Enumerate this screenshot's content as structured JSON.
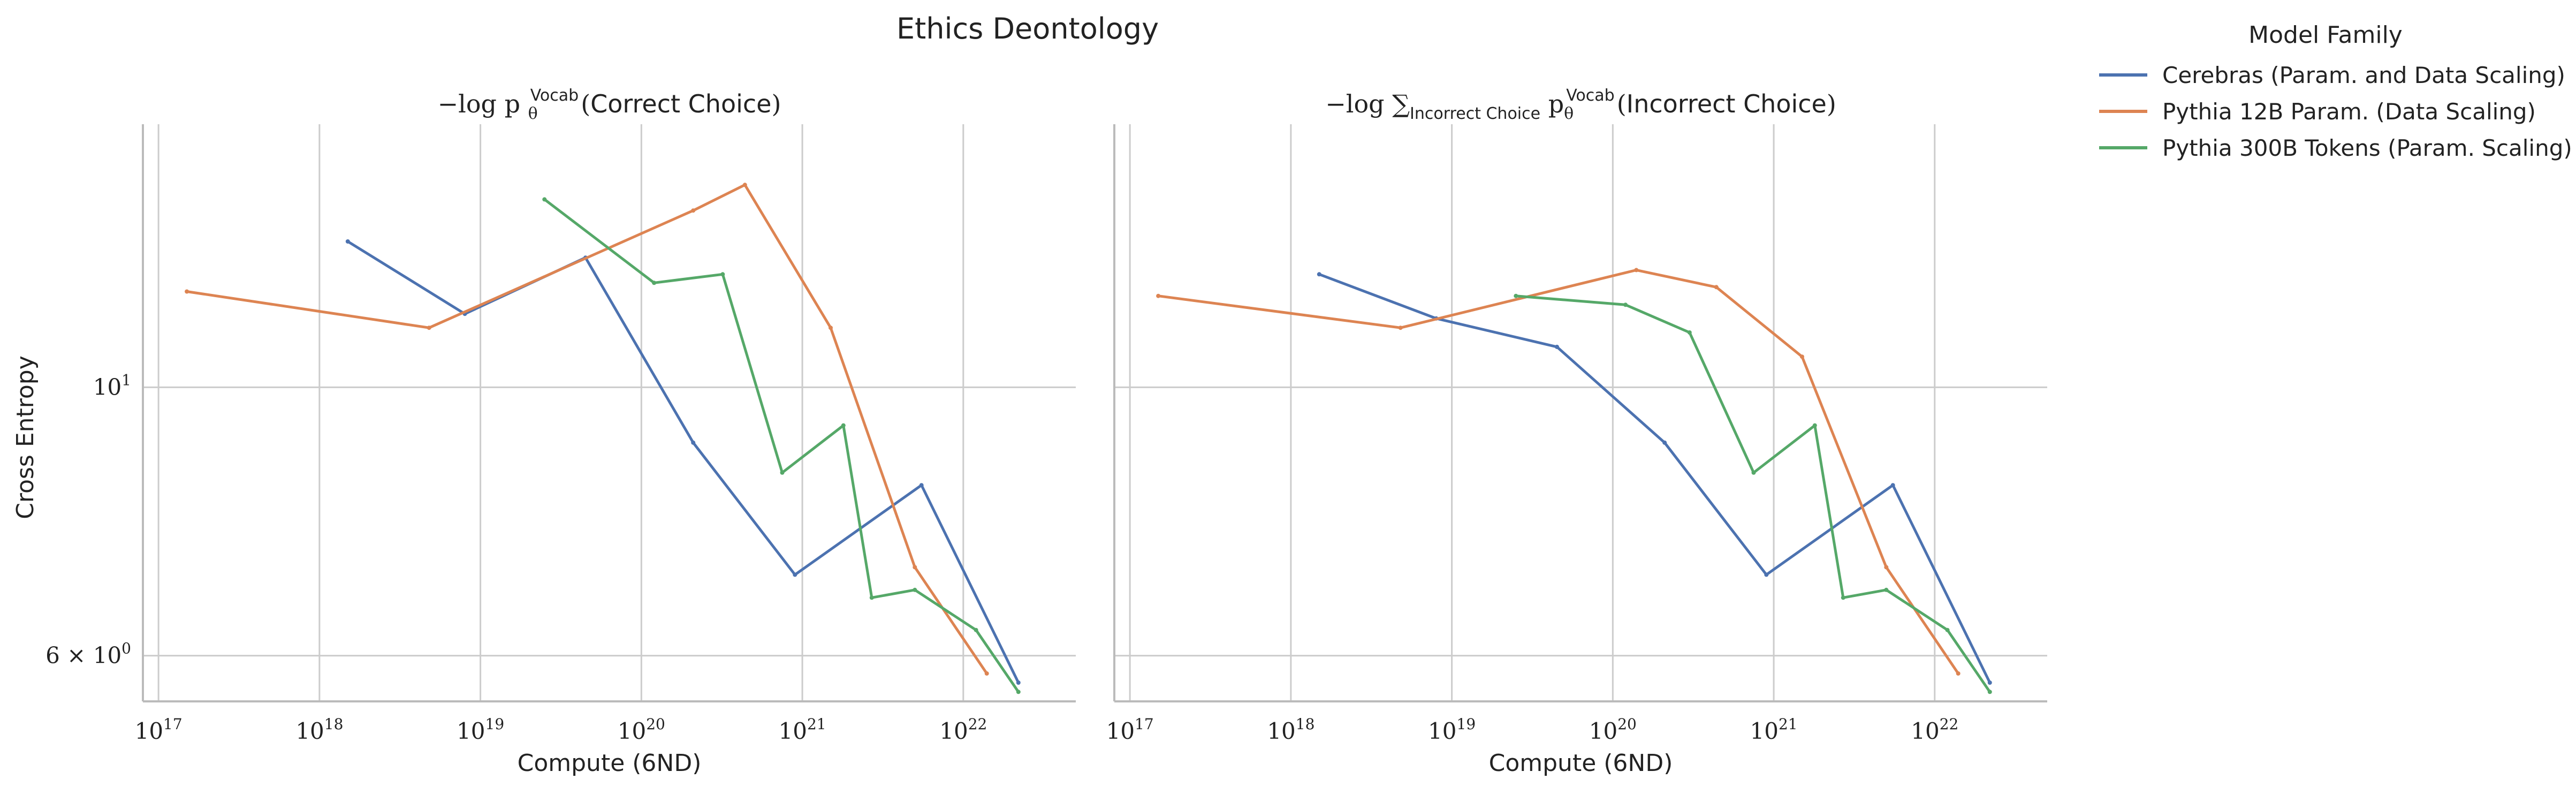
{
  "chart_data": {
    "type": "line",
    "title": "Ethics Deontology",
    "ylabel": "Cross Entropy",
    "x_scale": "log",
    "y_scale": "log",
    "xlim": [
      8e+16,
      5e+22
    ],
    "ylim": [
      5.5,
      16.5
    ],
    "x_ticks": [
      {
        "value": 1e+17,
        "base": "10",
        "exp": "17"
      },
      {
        "value": 1e+18,
        "base": "10",
        "exp": "18"
      },
      {
        "value": 1e+19,
        "base": "10",
        "exp": "19"
      },
      {
        "value": 1e+20,
        "base": "10",
        "exp": "20"
      },
      {
        "value": 1e+21,
        "base": "10",
        "exp": "21"
      },
      {
        "value": 1e+22,
        "base": "10",
        "exp": "22"
      }
    ],
    "y_ticks": [
      {
        "value": 10,
        "base": "10",
        "exp": "1",
        "prefix": ""
      },
      {
        "value": 6,
        "base": "10",
        "exp": "0",
        "prefix": "6 × "
      }
    ],
    "grid": true,
    "legend": {
      "title": "Model Family",
      "placement": "outside-right",
      "entries": [
        {
          "label": "Cerebras (Param. and Data Scaling)",
          "color": "#4c72b0"
        },
        {
          "label": "Pythia 12B Param. (Data Scaling)",
          "color": "#dd8452"
        },
        {
          "label": "Pythia 300B Tokens (Param. Scaling)",
          "color": "#55a868"
        }
      ]
    },
    "panels": [
      {
        "title_parts": [
          "−log p",
          "θ",
          "Vocab",
          "(",
          "Correct Choice",
          ")"
        ],
        "xlabel": "Compute (6ND)",
        "series": [
          {
            "name": "Cerebras (Param. and Data Scaling)",
            "color": "#4c72b0",
            "x": [
              1.5e+18,
              8e+18,
              4.5e+19,
              2.1e+20,
              9e+20,
              5.5e+21,
              2.2e+22
            ],
            "y": [
              13.2,
              11.5,
              12.8,
              9.0,
              7.0,
              8.3,
              5.7
            ]
          },
          {
            "name": "Pythia 12B Param. (Data Scaling)",
            "color": "#dd8452",
            "x": [
              1.5e+17,
              4.8e+18,
              2.1e+20,
              4.4e+20,
              1.5e+21,
              5e+21,
              1.4e+22
            ],
            "y": [
              12.0,
              11.2,
              14.0,
              14.7,
              11.2,
              7.1,
              5.8
            ]
          },
          {
            "name": "Pythia 300B Tokens (Param. Scaling)",
            "color": "#55a868",
            "x": [
              2.5e+19,
              1.2e+20,
              3.2e+20,
              7.5e+20,
              1.8e+21,
              2.7e+21,
              5e+21,
              1.2e+22,
              2.2e+22
            ],
            "y": [
              14.3,
              12.2,
              12.4,
              8.5,
              9.3,
              6.7,
              6.8,
              6.3,
              5.6
            ]
          }
        ]
      },
      {
        "title_parts": [
          "−log ∑",
          "Incorrect Choice",
          "p",
          "θ",
          "Vocab",
          "(",
          "Incorrect Choice",
          ")"
        ],
        "xlabel": "Compute (6ND)",
        "series": [
          {
            "name": "Cerebras (Param. and Data Scaling)",
            "color": "#4c72b0",
            "x": [
              1.5e+18,
              8e+18,
              4.5e+19,
              2.1e+20,
              9e+20,
              5.5e+21,
              2.2e+22
            ],
            "y": [
              12.4,
              11.4,
              10.8,
              9.0,
              7.0,
              8.3,
              5.7
            ]
          },
          {
            "name": "Pythia 12B Param. (Data Scaling)",
            "color": "#dd8452",
            "x": [
              1.5e+17,
              4.8e+18,
              1.4e+20,
              4.4e+20,
              1.5e+21,
              5e+21,
              1.4e+22
            ],
            "y": [
              11.9,
              11.2,
              12.5,
              12.1,
              10.6,
              7.1,
              5.8
            ]
          },
          {
            "name": "Pythia 300B Tokens (Param. Scaling)",
            "color": "#55a868",
            "x": [
              2.5e+19,
              1.2e+20,
              3e+20,
              7.5e+20,
              1.8e+21,
              2.7e+21,
              5e+21,
              1.2e+22,
              2.2e+22
            ],
            "y": [
              11.9,
              11.7,
              11.1,
              8.5,
              9.3,
              6.7,
              6.8,
              6.3,
              5.6
            ]
          }
        ]
      }
    ]
  }
}
